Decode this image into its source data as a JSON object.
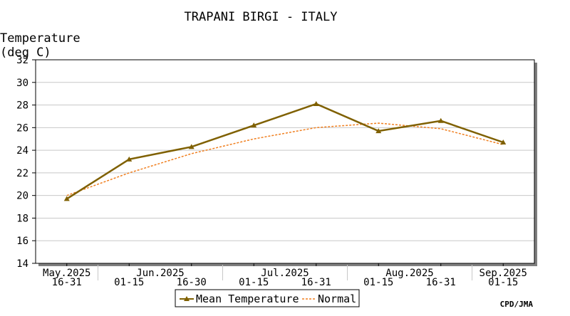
{
  "chart_data": {
    "type": "line",
    "title": "TRAPANI BIRGI - ITALY",
    "ylabel": [
      "Temperature",
      "(deg C)"
    ],
    "xlabel": "",
    "ylim": [
      14,
      32
    ],
    "yticks": [
      14,
      16,
      18,
      20,
      22,
      24,
      26,
      28,
      30,
      32
    ],
    "grid": true,
    "categories": [
      "May.2025 16-31",
      "Jun.2025 01-15",
      "Jun.2025 16-30",
      "Jul.2025 01-15",
      "Jul.2025 16-31",
      "Aug.2025 01-15",
      "Aug.2025 16-31",
      "Sep.2025 01-15"
    ],
    "x_tick_labels": [
      "16-31",
      "01-15",
      "16-30",
      "01-15",
      "16-31",
      "01-15",
      "16-31",
      "01-15"
    ],
    "month_labels": [
      {
        "label": "May.2025",
        "at": 0
      },
      {
        "label": "Jun.2025",
        "at": 1.5
      },
      {
        "label": "Jul.2025",
        "at": 3.5
      },
      {
        "label": "Aug.2025",
        "at": 5.5
      },
      {
        "label": "Sep.2025",
        "at": 7
      }
    ],
    "month_boundaries": [
      0.5,
      2.5,
      4.5,
      6.5
    ],
    "series": [
      {
        "name": "Mean Temperature",
        "color": "#7f6000",
        "style": "solid",
        "marker": "triangle",
        "values": [
          19.7,
          23.2,
          24.3,
          26.2,
          28.1,
          25.7,
          26.6,
          24.7
        ]
      },
      {
        "name": "Normal",
        "color": "#f07f1f",
        "style": "dotted",
        "marker": "none",
        "values": [
          20.0,
          22.0,
          23.7,
          25.0,
          26.0,
          26.4,
          25.9,
          24.5
        ]
      }
    ],
    "legend_position": "bottom-center"
  },
  "credit": "CPD/JMA"
}
